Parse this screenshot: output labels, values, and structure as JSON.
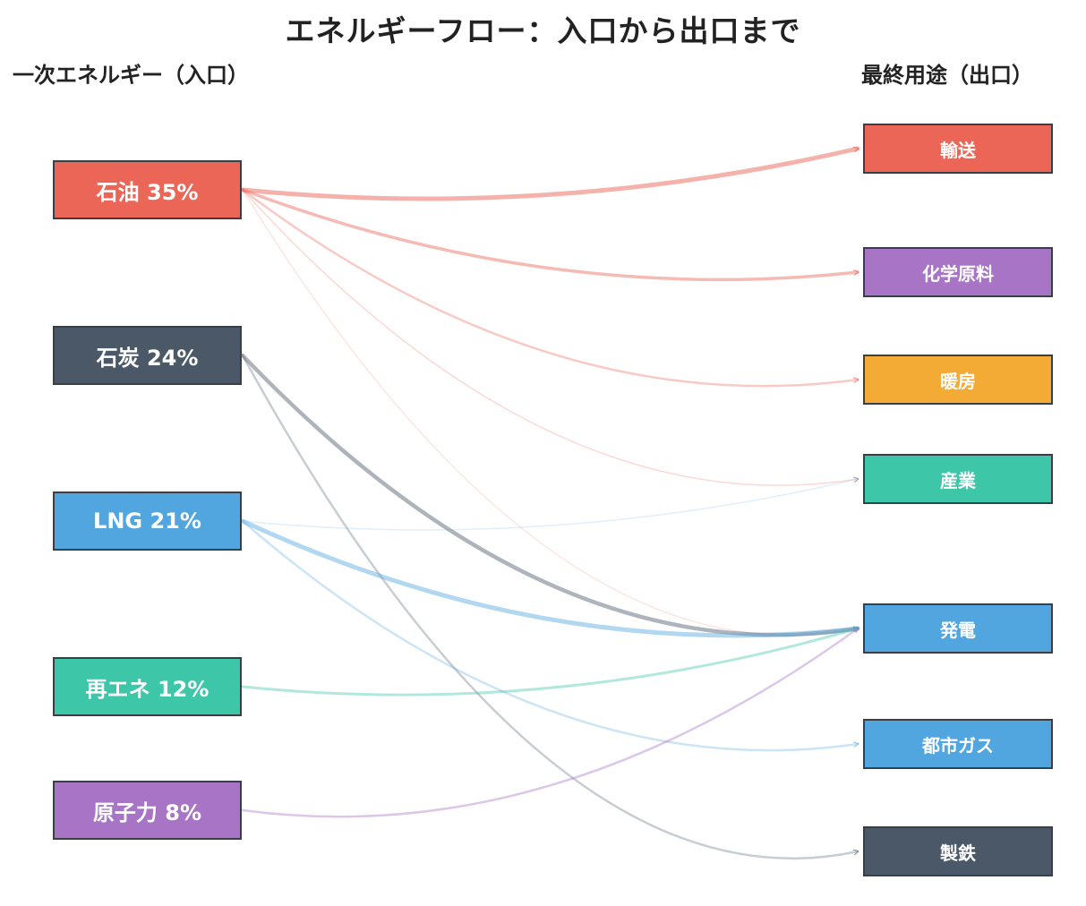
{
  "title": "エネルギーフロー：入口から出口まで",
  "left_heading": "一次エネルギー（入口）",
  "right_heading": "最終用途（出口）",
  "sources": [
    {
      "id": "oil",
      "label": "石油 35%",
      "color": "#ec6658"
    },
    {
      "id": "coal",
      "label": "石炭 24%",
      "color": "#4a5868"
    },
    {
      "id": "lng",
      "label": "LNG 21%",
      "color": "#52a6e0"
    },
    {
      "id": "renewable",
      "label": "再エネ 12%",
      "color": "#3ec6a8"
    },
    {
      "id": "nuclear",
      "label": "原子力 8%",
      "color": "#a874c6"
    }
  ],
  "targets": [
    {
      "id": "transport",
      "label": "輸送",
      "color": "#ec6658"
    },
    {
      "id": "chemical",
      "label": "化学原料",
      "color": "#a874c6"
    },
    {
      "id": "heating",
      "label": "暖房",
      "color": "#f3ab35"
    },
    {
      "id": "industry",
      "label": "産業",
      "color": "#3ec6a8"
    },
    {
      "id": "power",
      "label": "発電",
      "color": "#52a6e0"
    },
    {
      "id": "citygas",
      "label": "都市ガス",
      "color": "#52a6e0"
    },
    {
      "id": "steel",
      "label": "製鉄",
      "color": "#4a5868"
    }
  ],
  "flows": [
    {
      "from": "oil",
      "to": "transport",
      "weight": 5,
      "opacity": 0.5
    },
    {
      "from": "oil",
      "to": "chemical",
      "weight": 3.5,
      "opacity": 0.45
    },
    {
      "from": "oil",
      "to": "heating",
      "weight": 2.5,
      "opacity": 0.35
    },
    {
      "from": "oil",
      "to": "industry",
      "weight": 1.5,
      "opacity": 0.25
    },
    {
      "from": "oil",
      "to": "power",
      "weight": 1.2,
      "opacity": 0.2
    },
    {
      "from": "coal",
      "to": "power",
      "weight": 4.5,
      "opacity": 0.45
    },
    {
      "from": "coal",
      "to": "steel",
      "weight": 2.5,
      "opacity": 0.3
    },
    {
      "from": "lng",
      "to": "power",
      "weight": 5,
      "opacity": 0.45
    },
    {
      "from": "lng",
      "to": "citygas",
      "weight": 2.5,
      "opacity": 0.3
    },
    {
      "from": "lng",
      "to": "industry",
      "weight": 1.5,
      "opacity": 0.18
    },
    {
      "from": "renewable",
      "to": "power",
      "weight": 3,
      "opacity": 0.4
    },
    {
      "from": "nuclear",
      "to": "power",
      "weight": 2.5,
      "opacity": 0.4
    }
  ]
}
